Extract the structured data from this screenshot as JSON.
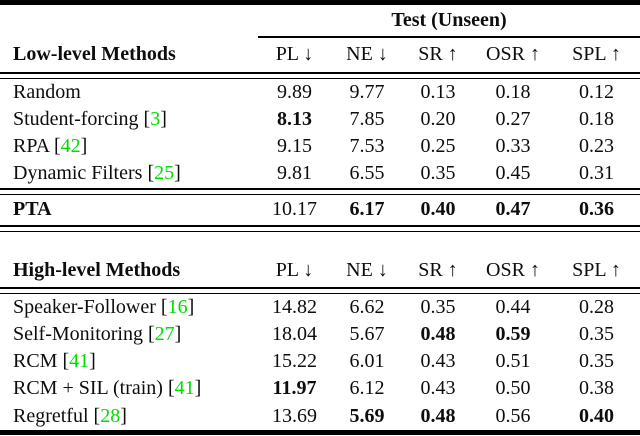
{
  "table": {
    "span_title": "Test (Unseen)",
    "columns": [
      "PL ↓",
      "NE ↓",
      "SR ↑",
      "OSR ↑",
      "SPL ↑"
    ],
    "citation_color": "#00dd00",
    "sections": [
      {
        "label": "Low-level Methods",
        "rows": [
          {
            "method": "Random",
            "citation": "",
            "values": [
              "9.89",
              "9.77",
              "0.13",
              "0.18",
              "0.12"
            ],
            "bold_method": false,
            "bold_values": [
              false,
              false,
              false,
              false,
              false
            ]
          },
          {
            "method": "Student-forcing",
            "citation": "3",
            "values": [
              "8.13",
              "7.85",
              "0.20",
              "0.27",
              "0.18"
            ],
            "bold_method": false,
            "bold_values": [
              true,
              false,
              false,
              false,
              false
            ]
          },
          {
            "method": "RPA",
            "citation": "42",
            "values": [
              "9.15",
              "7.53",
              "0.25",
              "0.33",
              "0.23"
            ],
            "bold_method": false,
            "bold_values": [
              false,
              false,
              false,
              false,
              false
            ]
          },
          {
            "method": "Dynamic Filters",
            "citation": "25",
            "values": [
              "9.81",
              "6.55",
              "0.35",
              "0.45",
              "0.31"
            ],
            "bold_method": false,
            "bold_values": [
              false,
              false,
              false,
              false,
              false
            ]
          }
        ],
        "summary_row": {
          "method": "PTA",
          "citation": "",
          "values": [
            "10.17",
            "6.17",
            "0.40",
            "0.47",
            "0.36"
          ],
          "bold_method": true,
          "bold_values": [
            false,
            true,
            true,
            true,
            true
          ]
        }
      },
      {
        "label": "High-level Methods",
        "rows": [
          {
            "method": "Speaker-Follower",
            "citation": "16",
            "values": [
              "14.82",
              "6.62",
              "0.35",
              "0.44",
              "0.28"
            ],
            "bold_method": false,
            "bold_values": [
              false,
              false,
              false,
              false,
              false
            ]
          },
          {
            "method": "Self-Monitoring",
            "citation": "27",
            "values": [
              "18.04",
              "5.67",
              "0.48",
              "0.59",
              "0.35"
            ],
            "bold_method": false,
            "bold_values": [
              false,
              false,
              true,
              true,
              false
            ]
          },
          {
            "method": "RCM",
            "citation": "41",
            "values": [
              "15.22",
              "6.01",
              "0.43",
              "0.51",
              "0.35"
            ],
            "bold_method": false,
            "bold_values": [
              false,
              false,
              false,
              false,
              false
            ]
          },
          {
            "method": "RCM + SIL (train)",
            "citation": "41",
            "values": [
              "11.97",
              "6.12",
              "0.43",
              "0.50",
              "0.38"
            ],
            "bold_method": false,
            "bold_values": [
              true,
              false,
              false,
              false,
              false
            ]
          },
          {
            "method": "Regretful",
            "citation": "28",
            "values": [
              "13.69",
              "5.69",
              "0.48",
              "0.56",
              "0.40"
            ],
            "bold_method": false,
            "bold_values": [
              false,
              true,
              true,
              false,
              true
            ]
          }
        ]
      }
    ]
  }
}
